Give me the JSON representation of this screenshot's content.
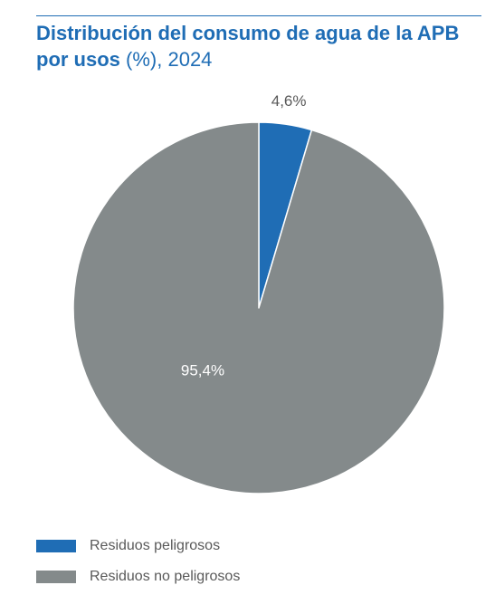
{
  "chart_data": {
    "type": "pie",
    "title": "Distribución del consumo de agua de la APB por usos",
    "subtitle": "(%), 2024",
    "slices": [
      {
        "name": "Residuos peligrosos",
        "value": 4.6,
        "label": "4,6%",
        "color": "#1f6db5"
      },
      {
        "name": "Residuos no peligrosos",
        "value": 95.4,
        "label": "95,4%",
        "color": "#848a8b"
      }
    ],
    "legend": "bottom-left"
  },
  "colors": {
    "accent": "#1f6db5",
    "gray": "#848a8b"
  }
}
